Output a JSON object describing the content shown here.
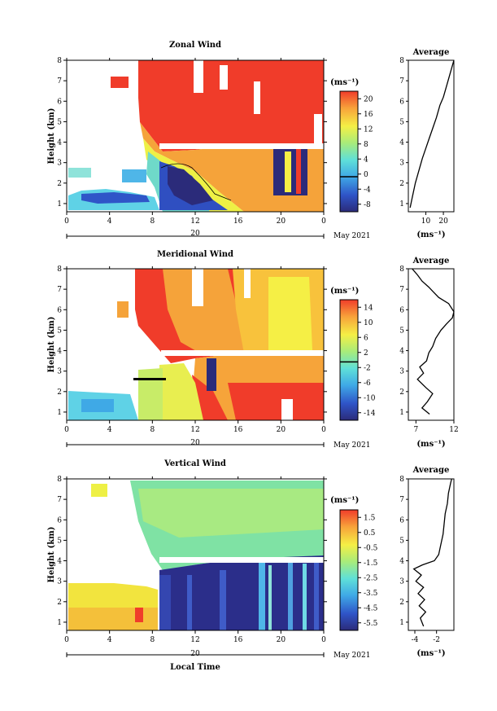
{
  "figure": {
    "date_label": "May 2021",
    "time_axis_label": "Local Time",
    "day_label": "20",
    "unit_label": "(ms⁻¹)",
    "height_label": "Height (km)"
  },
  "chart_data": [
    {
      "type": "heatmap",
      "title": "Zonal Wind",
      "xlabel": "",
      "ylabel": "Height (km)",
      "x_ticks": [
        "0",
        "4",
        "8",
        "12",
        "16",
        "20",
        "0"
      ],
      "y_ticks": [
        "1",
        "2",
        "3",
        "4",
        "5",
        "6",
        "7",
        "8"
      ],
      "xlim": [
        0,
        24
      ],
      "ylim": [
        0.6,
        8
      ],
      "colorbar": {
        "unit": "(ms⁻¹)",
        "range": [
          -9,
          22
        ],
        "ticks": [
          "20",
          "16",
          "12",
          "8",
          "4",
          "0",
          "-4",
          "-8"
        ],
        "zero_line": 0
      },
      "profile": {
        "title": "Average",
        "xlabel": "(ms⁻¹)",
        "x_ticks": [
          "10",
          "20"
        ],
        "xlim": [
          0,
          26
        ],
        "points": [
          [
            1,
            0.8
          ],
          [
            2,
            1.2
          ],
          [
            4,
            2.0
          ],
          [
            6,
            2.6
          ],
          [
            8,
            3.2
          ],
          [
            10,
            3.7
          ],
          [
            12,
            4.2
          ],
          [
            14,
            4.7
          ],
          [
            16,
            5.2
          ],
          [
            18,
            5.8
          ],
          [
            20,
            6.2
          ],
          [
            22,
            6.8
          ],
          [
            24,
            7.4
          ],
          [
            26,
            8.0
          ]
        ]
      }
    },
    {
      "type": "heatmap",
      "title": "Meridional Wind",
      "xlabel": "",
      "ylabel": "Height (km)",
      "x_ticks": [
        "0",
        "4",
        "8",
        "12",
        "16",
        "20",
        "0"
      ],
      "y_ticks": [
        "1",
        "2",
        "3",
        "4",
        "5",
        "6",
        "7",
        "8"
      ],
      "xlim": [
        0,
        24
      ],
      "ylim": [
        0.6,
        8
      ],
      "colorbar": {
        "unit": "(ms⁻¹)",
        "range": [
          -15,
          16
        ],
        "ticks": [
          "14",
          "10",
          "6",
          "2",
          "-2",
          "-6",
          "-10",
          "-14"
        ],
        "zero_line": 0
      },
      "profile": {
        "title": "Average",
        "xlabel": "(ms⁻¹)",
        "x_ticks": [
          "7",
          "12"
        ],
        "xlim": [
          6,
          12
        ],
        "points": [
          [
            8.8,
            0.9
          ],
          [
            7.8,
            1.2
          ],
          [
            8.5,
            1.5
          ],
          [
            9.2,
            1.9
          ],
          [
            8.3,
            2.2
          ],
          [
            7.2,
            2.6
          ],
          [
            8.0,
            2.9
          ],
          [
            7.5,
            3.2
          ],
          [
            8.4,
            3.5
          ],
          [
            8.7,
            3.9
          ],
          [
            9.2,
            4.2
          ],
          [
            9.6,
            4.6
          ],
          [
            10.3,
            5.0
          ],
          [
            11.0,
            5.3
          ],
          [
            11.8,
            5.6
          ],
          [
            12.0,
            5.9
          ],
          [
            11.3,
            6.3
          ],
          [
            10.0,
            6.6
          ],
          [
            9.2,
            6.9
          ],
          [
            8.7,
            7.1
          ],
          [
            7.8,
            7.4
          ],
          [
            7.2,
            7.7
          ],
          [
            6.5,
            8.0
          ]
        ]
      }
    },
    {
      "type": "heatmap",
      "title": "Vertical Wind",
      "xlabel": "Local Time",
      "ylabel": "Height (km)",
      "x_ticks": [
        "0",
        "4",
        "8",
        "12",
        "16",
        "20",
        "0"
      ],
      "y_ticks": [
        "1",
        "2",
        "3",
        "4",
        "5",
        "6",
        "7",
        "8"
      ],
      "xlim": [
        0,
        24
      ],
      "ylim": [
        0.6,
        8
      ],
      "colorbar": {
        "unit": "(ms⁻¹)",
        "range": [
          -6,
          2
        ],
        "ticks": [
          "1.5",
          "0.5",
          "-0.5",
          "-1.5",
          "-2.5",
          "-3.5",
          "-4.5",
          "-5.5"
        ]
      },
      "profile": {
        "title": "Average",
        "xlabel": "(ms⁻¹)",
        "x_ticks": [
          "-4",
          "-2"
        ],
        "xlim": [
          -4.6,
          -0.4
        ],
        "points": [
          [
            -3.2,
            0.8
          ],
          [
            -3.5,
            1.2
          ],
          [
            -3.0,
            1.5
          ],
          [
            -3.6,
            1.8
          ],
          [
            -3.1,
            2.1
          ],
          [
            -3.7,
            2.4
          ],
          [
            -3.2,
            2.7
          ],
          [
            -3.9,
            3.0
          ],
          [
            -3.4,
            3.3
          ],
          [
            -4.1,
            3.6
          ],
          [
            -3.3,
            3.8
          ],
          [
            -2.2,
            4.0
          ],
          [
            -1.8,
            4.3
          ],
          [
            -1.6,
            4.8
          ],
          [
            -1.4,
            5.3
          ],
          [
            -1.3,
            5.8
          ],
          [
            -1.2,
            6.3
          ],
          [
            -1.0,
            6.8
          ],
          [
            -0.9,
            7.3
          ],
          [
            -0.7,
            7.8
          ],
          [
            -0.6,
            8.0
          ]
        ]
      }
    }
  ]
}
